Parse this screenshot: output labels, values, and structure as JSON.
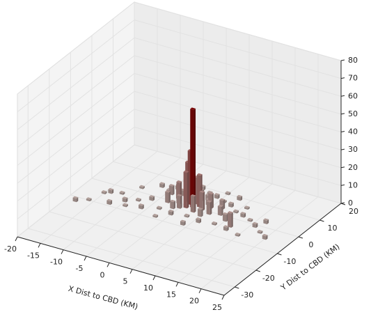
{
  "chart_data": {
    "type": "bar3d",
    "xlabel": "X Dist to CBD (KM)",
    "ylabel": "Y Dist to CBD (KM)",
    "xlim": [
      -20,
      25
    ],
    "xticks": [
      -20,
      -15,
      -10,
      -5,
      0,
      5,
      10,
      15,
      20,
      25
    ],
    "ylim": [
      -35,
      20
    ],
    "yticks": [
      -30,
      -20,
      -10,
      0,
      10,
      20
    ],
    "zlim": [
      0,
      80
    ],
    "zticks": [
      0,
      10,
      20,
      30,
      40,
      50,
      60,
      70,
      80
    ],
    "colors": [
      "#b3a39e",
      "#7a0606"
    ],
    "grid": true,
    "x": [
      2,
      1,
      0,
      1,
      3,
      2,
      -1,
      4,
      3,
      -2,
      5,
      0,
      6,
      -3,
      2,
      7,
      8,
      -4,
      10,
      12,
      -15,
      -14,
      -12,
      -10,
      -8,
      -6,
      -5,
      -4,
      -2,
      0,
      2,
      4,
      6,
      8,
      10,
      12,
      14,
      16,
      18,
      20,
      15,
      12,
      9,
      6,
      3,
      0,
      -3,
      -6,
      -9,
      -12,
      -16,
      -18,
      -10,
      -7,
      5,
      8,
      11,
      17,
      -2,
      4,
      1,
      -1,
      4,
      5,
      -2,
      3
    ],
    "y": [
      0,
      1,
      2,
      -1,
      1,
      2,
      0,
      0,
      -2,
      2,
      2,
      -2,
      -1,
      -1,
      4,
      3,
      0,
      3,
      -2,
      -4,
      -5,
      -4,
      -3,
      -6,
      -4,
      -2,
      4,
      6,
      8,
      9,
      8,
      7,
      6,
      5,
      3,
      2,
      1,
      -1,
      -3,
      -5,
      -7,
      -6,
      -5,
      -6,
      -5,
      -6,
      -5,
      -7,
      -8,
      -9,
      -10,
      -12,
      2,
      5,
      10,
      9,
      6,
      2,
      -9,
      -9,
      3,
      -3,
      3,
      -3,
      4,
      5
    ],
    "values": [
      55,
      30,
      22,
      20,
      18,
      15,
      12,
      10,
      9,
      8,
      8,
      7,
      7,
      6,
      6,
      5,
      5,
      5,
      4,
      8,
      1,
      2,
      1,
      2,
      1,
      2,
      1,
      2,
      1,
      2,
      1,
      2,
      1,
      2,
      1,
      2,
      1,
      2,
      1,
      2,
      1,
      2,
      1,
      2,
      1,
      2,
      1,
      2,
      1,
      2,
      1,
      2,
      1,
      2,
      1,
      2,
      1,
      2,
      1,
      2,
      3,
      4,
      3,
      4,
      3,
      3
    ]
  }
}
